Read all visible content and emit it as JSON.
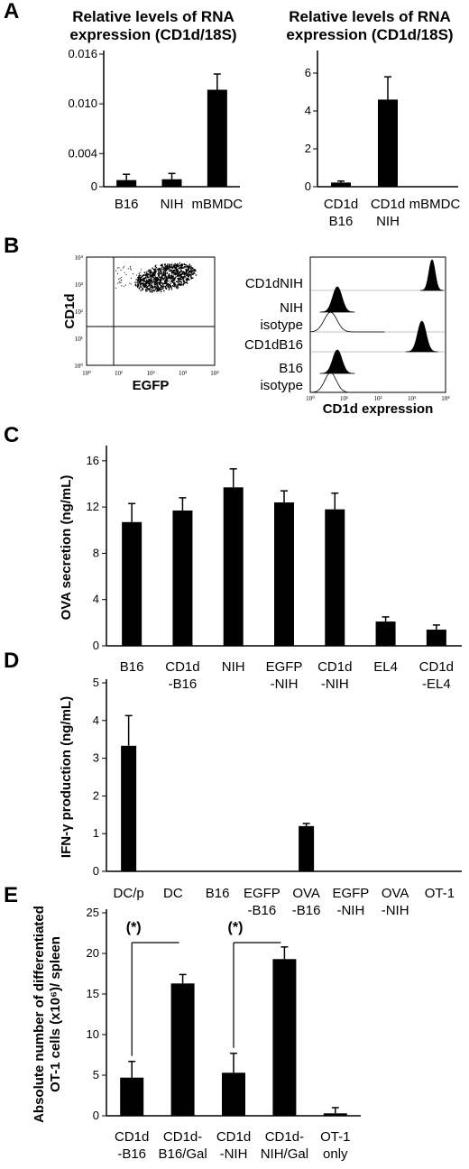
{
  "panels": {
    "A": "A",
    "B": "B",
    "C": "C",
    "D": "D",
    "E": "E"
  },
  "chart_data": [
    {
      "id": "A-left",
      "type": "bar",
      "title_lines": [
        "Relative levels of RNA",
        "expression (CD1d/18S)"
      ],
      "categories": [
        [
          "B16"
        ],
        [
          "NIH"
        ],
        [
          "mBMDC"
        ]
      ],
      "values": [
        0.0008,
        0.0009,
        0.0117
      ],
      "errors": [
        0.0007,
        0.0007,
        0.0019
      ],
      "ylim": [
        0,
        0.016
      ],
      "yticks": [
        0,
        0.004,
        0.01,
        0.016
      ],
      "ytick_labels": [
        "0",
        "0.004",
        "0.010",
        "0.016"
      ],
      "ylabel": ""
    },
    {
      "id": "A-right",
      "type": "bar",
      "title_lines": [
        "Relative levels of RNA",
        "expression (CD1d/18S)"
      ],
      "categories": [
        [
          "CD1d",
          "B16"
        ],
        [
          "CD1d",
          "NIH"
        ],
        [
          "mBMDC"
        ]
      ],
      "values": [
        0.22,
        4.6,
        0
      ],
      "errors": [
        0.08,
        1.2,
        0
      ],
      "ylim": [
        0,
        7
      ],
      "yticks": [
        0,
        2,
        4,
        6
      ],
      "ytick_labels": [
        "0",
        "2",
        "4",
        "6"
      ],
      "ylabel": ""
    },
    {
      "id": "C",
      "type": "bar",
      "categories": [
        [
          "B16"
        ],
        [
          "CD1d",
          "-B16"
        ],
        [
          "NIH"
        ],
        [
          "EGFP",
          "-NIH"
        ],
        [
          "CD1d",
          "-NIH"
        ],
        [
          "EL4"
        ],
        [
          "CD1d",
          "-EL4"
        ]
      ],
      "values": [
        10.7,
        11.7,
        13.7,
        12.4,
        11.8,
        2.1,
        1.4
      ],
      "errors": [
        1.6,
        1.1,
        1.6,
        1.0,
        1.4,
        0.4,
        0.4
      ],
      "ylim": [
        0,
        17
      ],
      "yticks": [
        0,
        4,
        8,
        12,
        16
      ],
      "ytick_labels": [
        "0",
        "4",
        "8",
        "12",
        "16"
      ],
      "ylabel": "OVA secretion (ng/mL)"
    },
    {
      "id": "D",
      "type": "bar",
      "categories": [
        [
          "DC/p"
        ],
        [
          "DC"
        ],
        [
          "B16"
        ],
        [
          "EGFP",
          "-B16"
        ],
        [
          "OVA",
          "-B16"
        ],
        [
          "EGFP",
          "-NIH"
        ],
        [
          "OVA",
          "-NIH"
        ],
        [
          "OT-1"
        ]
      ],
      "values": [
        3.33,
        0,
        0,
        0,
        1.2,
        0,
        0,
        0
      ],
      "errors": [
        0.8,
        0,
        0,
        0,
        0.07,
        0,
        0,
        0
      ],
      "ylim": [
        0,
        5
      ],
      "yticks": [
        0,
        1,
        2,
        3,
        4,
        5
      ],
      "ytick_labels": [
        "0",
        "1",
        "2",
        "3",
        "4",
        "5"
      ],
      "ylabel": "IFN-γ production (ng/mL)"
    },
    {
      "id": "E",
      "type": "bar",
      "categories": [
        [
          "CD1d",
          "-B16"
        ],
        [
          "CD1d-",
          "B16/Gal"
        ],
        [
          "CD1d",
          "-NIH"
        ],
        [
          "CD1d-",
          "NIH/Gal"
        ],
        [
          "OT-1",
          "only"
        ]
      ],
      "values": [
        4.7,
        16.3,
        5.3,
        19.3,
        0.3
      ],
      "errors": [
        2.0,
        1.1,
        2.4,
        1.5,
        0.7
      ],
      "ylim": [
        0,
        25
      ],
      "yticks": [
        0,
        5,
        10,
        15,
        20,
        25
      ],
      "ytick_labels": [
        "0",
        "5",
        "10",
        "15",
        "20",
        "25"
      ],
      "ylabel_lines": [
        "Absolute number of differentiated",
        "OT-1 cells (x10⁶)/ spleen"
      ],
      "significance": [
        {
          "from": 0,
          "to": 1,
          "label": "(*)"
        },
        {
          "from": 2,
          "to": 3,
          "label": "(*)"
        }
      ]
    }
  ],
  "flow_scatter": {
    "ylabel": "CD1d",
    "xlabel": "EGFP",
    "tick_labels": [
      "10⁰",
      "10¹",
      "10²",
      "10³",
      "10⁴"
    ]
  },
  "flow_histogram": {
    "xlabel": "CD1d expression",
    "tick_labels": [
      "10⁰",
      "10¹",
      "10²",
      "10³",
      "10⁴"
    ],
    "rows": [
      {
        "label": "CD1dNIH",
        "peak": 3.6
      },
      {
        "label": "NIH",
        "peak": 0.8
      },
      {
        "label": "isotype",
        "peak": 0.6
      },
      {
        "label": "CD1dB16",
        "peak": 3.3
      },
      {
        "label": "B16",
        "peak": 0.8
      },
      {
        "label": "isotype",
        "peak": 0.6
      }
    ]
  }
}
